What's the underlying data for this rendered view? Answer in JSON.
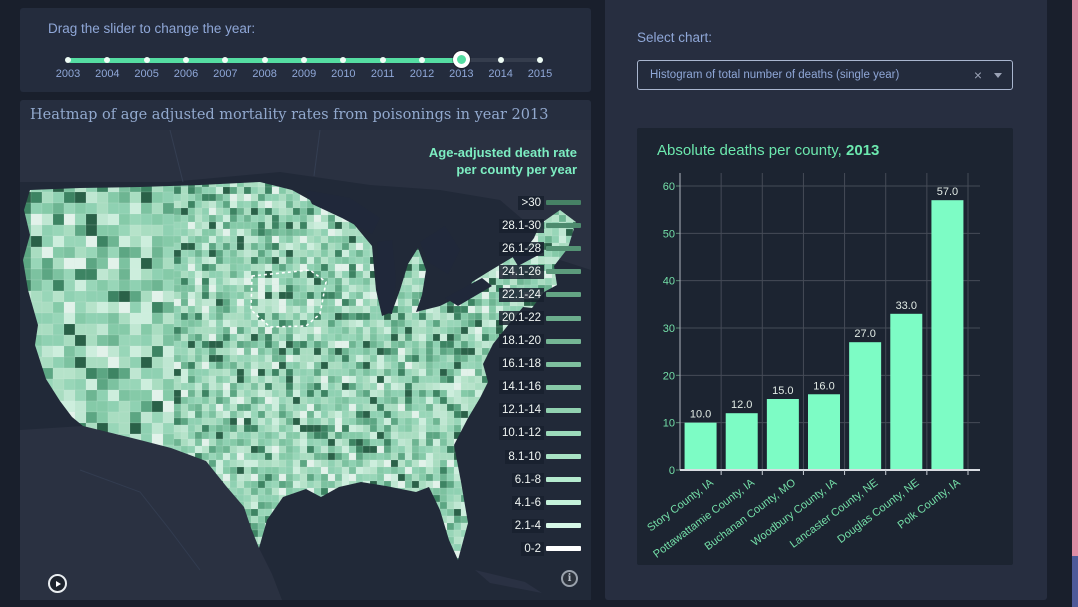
{
  "colors": {
    "accent_green": "#7dfcc5",
    "slider_green": "#55dda2",
    "label_blue": "#8fa7d7",
    "legend_green": "#7deec2",
    "tick_green": "#74dfa8",
    "edge_pink": "#e08ea6",
    "edge_purple": "#4f5a99"
  },
  "slider_panel": {
    "label": "Drag the slider to change the year:",
    "years": [
      "2003",
      "2004",
      "2005",
      "2006",
      "2007",
      "2008",
      "2009",
      "2010",
      "2011",
      "2012",
      "2013",
      "2014",
      "2015"
    ],
    "selected_year": "2013"
  },
  "map_panel": {
    "title": "Heatmap of age adjusted mortality rates from poisonings in year 2013",
    "legend": {
      "title_line1": "Age-adjusted death rate",
      "title_line2": "per county per year",
      "entries": [
        {
          "label": ">30",
          "color": "#468165"
        },
        {
          "label": "28.1-30",
          "color": "#4d8a6d"
        },
        {
          "label": "26.1-28",
          "color": "#549274"
        },
        {
          "label": "24.1-26",
          "color": "#5c9b7c"
        },
        {
          "label": "22.1-24",
          "color": "#64a484"
        },
        {
          "label": "20.1-22",
          "color": "#6cad8d"
        },
        {
          "label": "18.1-20",
          "color": "#75b695"
        },
        {
          "label": "16.1-18",
          "color": "#7ebf9e"
        },
        {
          "label": "14.1-16",
          "color": "#87c8a7"
        },
        {
          "label": "12.1-14",
          "color": "#91d1b0"
        },
        {
          "label": "10.1-12",
          "color": "#9cdaba"
        },
        {
          "label": "8.1-10",
          "color": "#a8e2c4"
        },
        {
          "label": "6.1-8",
          "color": "#b5eacf"
        },
        {
          "label": "4.1-6",
          "color": "#c4f1da"
        },
        {
          "label": "2.1-4",
          "color": "#d6f7e7"
        },
        {
          "label": "0-2",
          "color": "#ffffff"
        }
      ]
    },
    "map_palette": [
      "#a9ddc1",
      "#98d6b8",
      "#8fd1b2",
      "#bfe7d2",
      "#a9ddc1",
      "#85caa8",
      "#7cc2a0",
      "#cdeedd",
      "#5ca683",
      "#98d6b8",
      "#3d8463",
      "#e2f2ea",
      "#2a6148",
      "#8fd1b2",
      "#b6e3ca",
      "#6db592"
    ]
  },
  "right_panel": {
    "select_label": "Select chart:",
    "dropdown_value": "Histogram of total number of deaths (single year)"
  },
  "icons": {
    "clear": "×",
    "info": "i"
  },
  "chart_data": {
    "type": "bar",
    "title": "Absolute deaths per county, 2013",
    "title_prefix": "Absolute deaths per county, ",
    "title_year": "2013",
    "categories": [
      "Story County, IA",
      "Pottawattamie County, IA",
      "Buchanan County, MO",
      "Woodbury County, IA",
      "Lancaster County, NE",
      "Douglas County, NE",
      "Polk County, IA"
    ],
    "values": [
      10,
      12,
      15,
      16,
      27,
      33,
      57
    ],
    "value_labels": [
      "10.0",
      "12.0",
      "15.0",
      "16.0",
      "27.0",
      "33.0",
      "57.0"
    ],
    "ylim": [
      0,
      60
    ],
    "yticks": [
      0,
      10,
      20,
      30,
      40,
      50,
      60
    ],
    "grid": true,
    "legend": "none",
    "bar_color": "#7dfcc5",
    "tick_color": "#74dfa8",
    "value_label_color": "#e2ebe6"
  }
}
